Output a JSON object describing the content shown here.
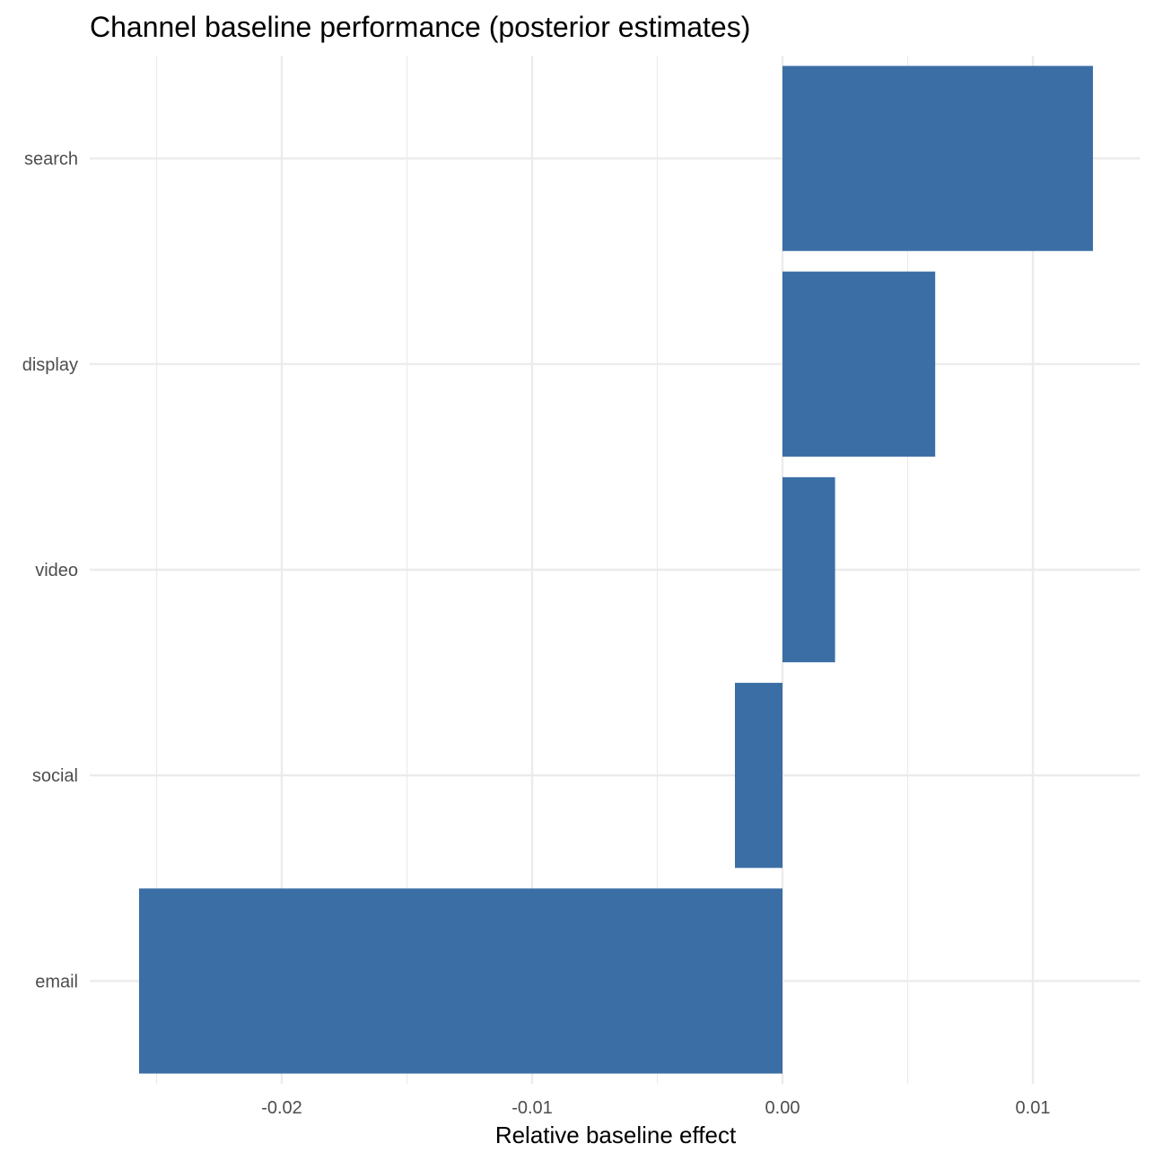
{
  "chart_data": {
    "type": "bar",
    "orientation": "horizontal",
    "title": "Channel baseline performance (posterior estimates)",
    "xlabel": "Relative baseline effect",
    "ylabel": "",
    "categories": [
      "search",
      "display",
      "video",
      "social",
      "email"
    ],
    "values": [
      0.0124,
      0.0061,
      0.0021,
      -0.0019,
      -0.0257
    ],
    "xlim": [
      -0.0262,
      0.0142
    ],
    "x_ticks": [
      -0.02,
      -0.01,
      0.0,
      0.01
    ],
    "x_tick_labels": [
      "-0.02",
      "-0.01",
      "0.00",
      "0.01"
    ],
    "grid": true,
    "bar_color": "#3a6ea5",
    "grid_color": "#ebebeb"
  }
}
